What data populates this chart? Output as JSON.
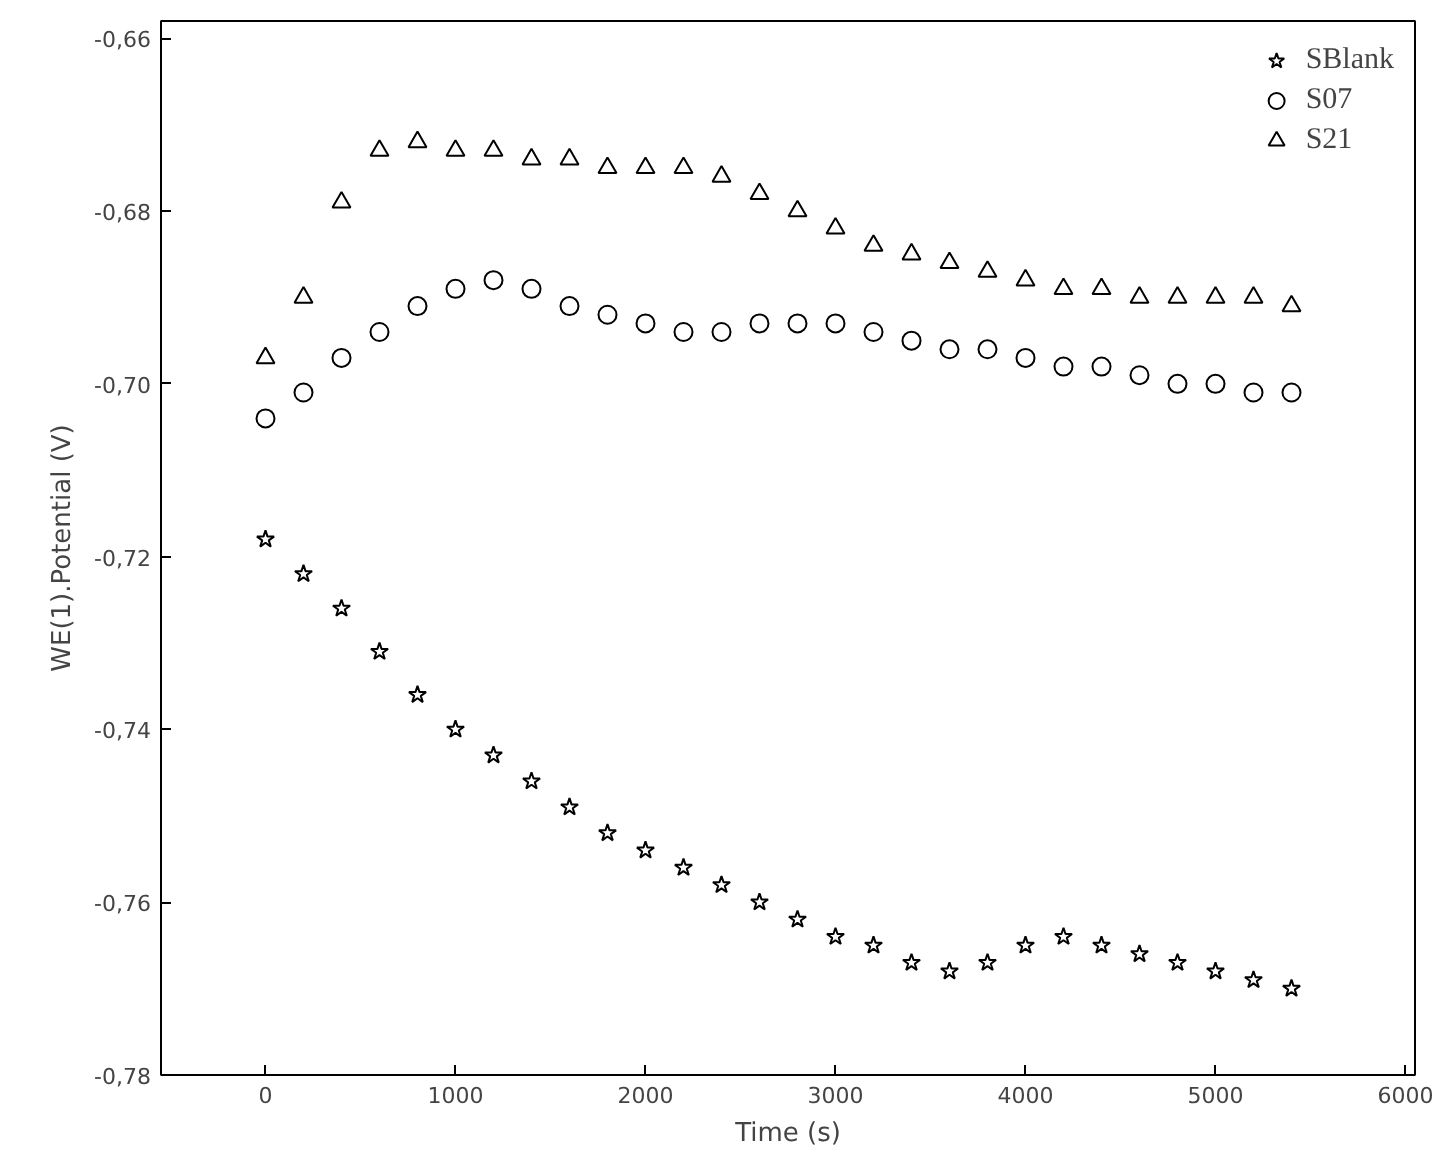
{
  "chart_data": {
    "type": "scatter",
    "xlabel": "Time (s)",
    "ylabel": "WE(1).Potential (V)",
    "x": [
      0,
      200,
      400,
      600,
      800,
      1000,
      1200,
      1400,
      1600,
      1800,
      2000,
      2200,
      2400,
      2600,
      2800,
      3000,
      3200,
      3400,
      3600,
      3800,
      4000,
      4200,
      4400,
      4600,
      4800,
      5000,
      5200,
      5400
    ],
    "series": [
      {
        "name": "SBlank",
        "color": "#000000",
        "marker": "star",
        "values": [
          -0.718,
          -0.722,
          -0.726,
          -0.731,
          -0.736,
          -0.74,
          -0.743,
          -0.746,
          -0.749,
          -0.752,
          -0.754,
          -0.756,
          -0.758,
          -0.76,
          -0.762,
          -0.764,
          -0.765,
          -0.767,
          -0.768,
          -0.767,
          -0.765,
          -0.764,
          -0.765,
          -0.766,
          -0.767,
          -0.768,
          -0.769,
          -0.77
        ]
      },
      {
        "name": "S07",
        "color": "#000000",
        "marker": "circle",
        "values": [
          -0.704,
          -0.701,
          -0.697,
          -0.694,
          -0.691,
          -0.689,
          -0.688,
          -0.689,
          -0.691,
          -0.692,
          -0.693,
          -0.694,
          -0.694,
          -0.693,
          -0.693,
          -0.693,
          -0.694,
          -0.695,
          -0.696,
          -0.696,
          -0.697,
          -0.698,
          -0.698,
          -0.699,
          -0.7,
          -0.7,
          -0.701,
          -0.701
        ]
      },
      {
        "name": "S21",
        "color": "#000000",
        "marker": "triangle",
        "values": [
          -0.697,
          -0.69,
          -0.679,
          -0.673,
          -0.672,
          -0.673,
          -0.673,
          -0.674,
          -0.674,
          -0.675,
          -0.675,
          -0.675,
          -0.676,
          -0.678,
          -0.68,
          -0.682,
          -0.684,
          -0.685,
          -0.686,
          -0.687,
          -0.688,
          -0.689,
          -0.689,
          -0.69,
          -0.69,
          -0.69,
          -0.69,
          -0.691
        ]
      }
    ],
    "xlim": [
      -550,
      6050
    ],
    "ylim": [
      -0.78,
      -0.658
    ],
    "xticks": [
      0,
      1000,
      2000,
      3000,
      4000,
      5000,
      6000
    ],
    "yticks": [
      {
        "value": -0.78,
        "label": "-0,78"
      },
      {
        "value": -0.76,
        "label": "-0,76"
      },
      {
        "value": -0.74,
        "label": "-0,74"
      },
      {
        "value": -0.72,
        "label": "-0,72"
      },
      {
        "value": -0.7,
        "label": "-0,70"
      },
      {
        "value": -0.68,
        "label": "-0,68"
      },
      {
        "value": -0.66,
        "label": "-0,66"
      }
    ],
    "grid": false,
    "legend": "top right"
  }
}
